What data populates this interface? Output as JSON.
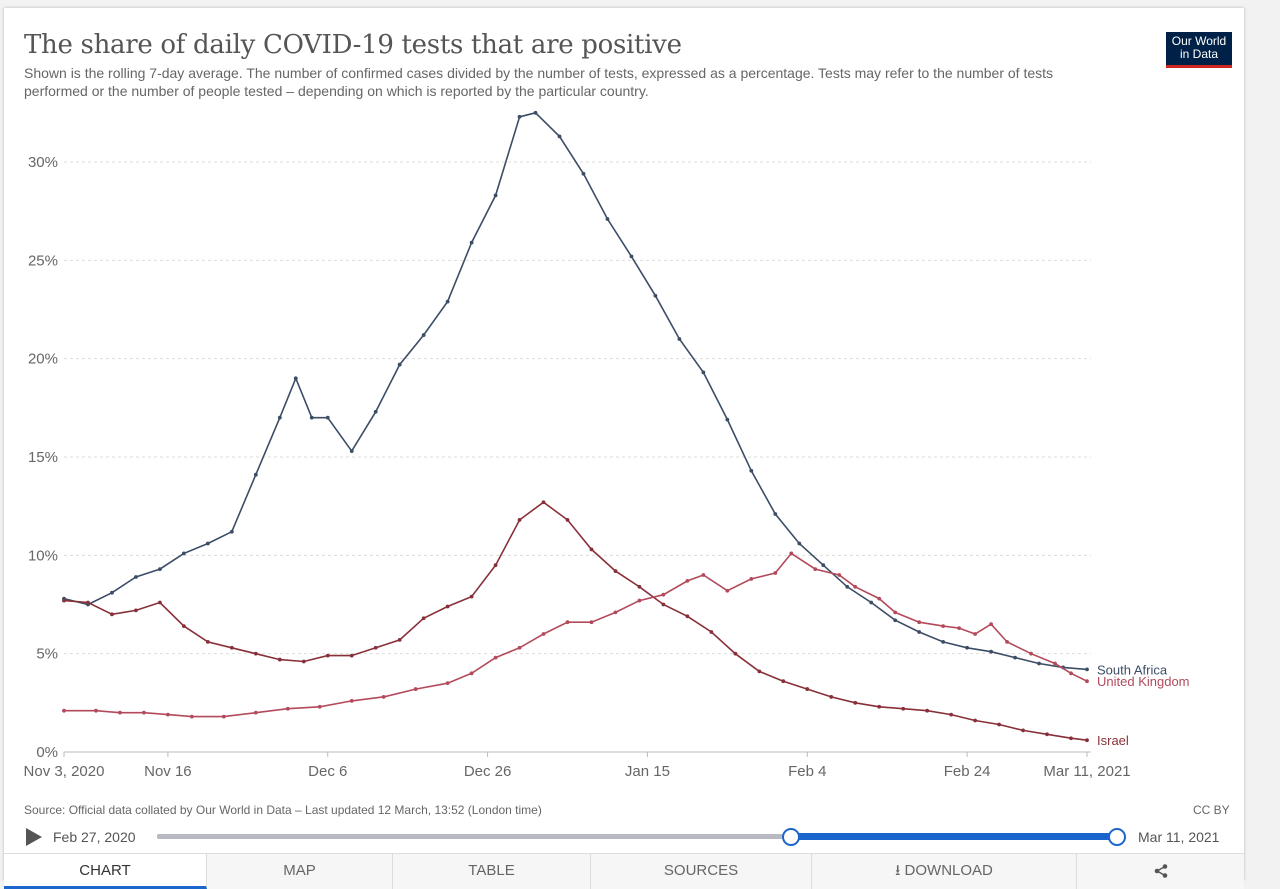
{
  "header": {
    "title": "The share of daily COVID-19 tests that are positive",
    "subtitle": "Shown is the rolling 7-day average. The number of confirmed cases divided by the number of tests, expressed as a percentage. Tests may refer to the number of tests performed or the number of people tested – depending on which is reported by the particular country.",
    "logo_line1": "Our World",
    "logo_line2": "in Data"
  },
  "chart_data": {
    "type": "line",
    "title": "The share of daily COVID-19 tests that are positive",
    "ylim": [
      0,
      32.5
    ],
    "y_ticks": [
      0,
      5,
      10,
      15,
      20,
      25,
      30
    ],
    "y_tick_labels": [
      "0%",
      "5%",
      "10%",
      "15%",
      "20%",
      "25%",
      "30%"
    ],
    "x_ticks": [
      0,
      13,
      33,
      53,
      73,
      93,
      113,
      128
    ],
    "x_tick_labels": [
      "Nov 3, 2020",
      "Nov 16",
      "Dec 6",
      "Dec 26",
      "Jan 15",
      "Feb 4",
      "Feb 24",
      "Mar 11, 2021"
    ],
    "x_unit": "days since Nov 3, 2020",
    "grid": true,
    "series": [
      {
        "name": "South Africa",
        "color": "#3c4e66",
        "points": [
          [
            0,
            7.8
          ],
          [
            3,
            7.5
          ],
          [
            6,
            8.1
          ],
          [
            9,
            8.9
          ],
          [
            12,
            9.3
          ],
          [
            15,
            10.1
          ],
          [
            18,
            10.6
          ],
          [
            21,
            11.2
          ],
          [
            24,
            14.1
          ],
          [
            27,
            17.0
          ],
          [
            29,
            19.0
          ],
          [
            31,
            17.0
          ],
          [
            33,
            17.0
          ],
          [
            36,
            15.3
          ],
          [
            39,
            17.3
          ],
          [
            42,
            19.7
          ],
          [
            45,
            21.2
          ],
          [
            48,
            22.9
          ],
          [
            51,
            25.9
          ],
          [
            54,
            28.3
          ],
          [
            57,
            32.3
          ],
          [
            59,
            32.5
          ],
          [
            62,
            31.3
          ],
          [
            65,
            29.4
          ],
          [
            68,
            27.1
          ],
          [
            71,
            25.2
          ],
          [
            74,
            23.2
          ],
          [
            77,
            21.0
          ],
          [
            80,
            19.3
          ],
          [
            83,
            16.9
          ],
          [
            86,
            14.3
          ],
          [
            89,
            12.1
          ],
          [
            92,
            10.6
          ],
          [
            95,
            9.5
          ],
          [
            98,
            8.4
          ],
          [
            101,
            7.6
          ],
          [
            104,
            6.7
          ],
          [
            107,
            6.1
          ],
          [
            110,
            5.6
          ],
          [
            113,
            5.3
          ],
          [
            116,
            5.1
          ],
          [
            119,
            4.8
          ],
          [
            122,
            4.5
          ],
          [
            125,
            4.3
          ],
          [
            128,
            4.2
          ]
        ]
      },
      {
        "name": "Israel",
        "color": "#883039",
        "points": [
          [
            0,
            7.7
          ],
          [
            3,
            7.6
          ],
          [
            6,
            7.0
          ],
          [
            9,
            7.2
          ],
          [
            12,
            7.6
          ],
          [
            15,
            6.4
          ],
          [
            18,
            5.6
          ],
          [
            21,
            5.3
          ],
          [
            24,
            5.0
          ],
          [
            27,
            4.7
          ],
          [
            30,
            4.6
          ],
          [
            33,
            4.9
          ],
          [
            36,
            4.9
          ],
          [
            39,
            5.3
          ],
          [
            42,
            5.7
          ],
          [
            45,
            6.8
          ],
          [
            48,
            7.4
          ],
          [
            51,
            7.9
          ],
          [
            54,
            9.5
          ],
          [
            57,
            11.8
          ],
          [
            60,
            12.7
          ],
          [
            63,
            11.8
          ],
          [
            66,
            10.3
          ],
          [
            69,
            9.2
          ],
          [
            72,
            8.4
          ],
          [
            75,
            7.5
          ],
          [
            78,
            6.9
          ],
          [
            81,
            6.1
          ],
          [
            84,
            5.0
          ],
          [
            87,
            4.1
          ],
          [
            90,
            3.6
          ],
          [
            93,
            3.2
          ],
          [
            96,
            2.8
          ],
          [
            99,
            2.5
          ],
          [
            102,
            2.3
          ],
          [
            105,
            2.2
          ],
          [
            108,
            2.1
          ],
          [
            111,
            1.9
          ],
          [
            114,
            1.6
          ],
          [
            117,
            1.4
          ],
          [
            120,
            1.1
          ],
          [
            123,
            0.9
          ],
          [
            126,
            0.7
          ],
          [
            128,
            0.6
          ]
        ]
      },
      {
        "name": "United Kingdom",
        "color": "#b34a5c",
        "points": [
          [
            0,
            2.1
          ],
          [
            4,
            2.1
          ],
          [
            7,
            2.0
          ],
          [
            10,
            2.0
          ],
          [
            13,
            1.9
          ],
          [
            16,
            1.8
          ],
          [
            20,
            1.8
          ],
          [
            24,
            2.0
          ],
          [
            28,
            2.2
          ],
          [
            32,
            2.3
          ],
          [
            36,
            2.6
          ],
          [
            40,
            2.8
          ],
          [
            44,
            3.2
          ],
          [
            48,
            3.5
          ],
          [
            51,
            4.0
          ],
          [
            54,
            4.8
          ],
          [
            57,
            5.3
          ],
          [
            60,
            6.0
          ],
          [
            63,
            6.6
          ],
          [
            66,
            6.6
          ],
          [
            69,
            7.1
          ],
          [
            72,
            7.7
          ],
          [
            75,
            8.0
          ],
          [
            78,
            8.7
          ],
          [
            80,
            9.0
          ],
          [
            83,
            8.2
          ],
          [
            86,
            8.8
          ],
          [
            89,
            9.1
          ],
          [
            91,
            10.1
          ],
          [
            94,
            9.3
          ],
          [
            97,
            9.0
          ],
          [
            99,
            8.4
          ],
          [
            102,
            7.8
          ],
          [
            104,
            7.1
          ],
          [
            107,
            6.6
          ],
          [
            110,
            6.4
          ],
          [
            112,
            6.3
          ],
          [
            114,
            6.0
          ],
          [
            116,
            6.5
          ],
          [
            118,
            5.6
          ],
          [
            121,
            5.0
          ],
          [
            124,
            4.5
          ],
          [
            126,
            4.0
          ],
          [
            128,
            3.6
          ]
        ]
      }
    ],
    "series_labels": [
      "South Africa",
      "Israel",
      "United Kingdom"
    ]
  },
  "footer": {
    "source": "Source: Official data collated by Our World in Data – Last updated 12 March, 13:52 (London time)",
    "license": "CC BY",
    "range_start": "Feb 27, 2020",
    "range_end": "Mar 11, 2021"
  },
  "tabs": [
    "CHART",
    "MAP",
    "TABLE",
    "SOURCES",
    "DOWNLOAD",
    ""
  ],
  "icons": {
    "download": "download-icon",
    "share": "share-icon",
    "play": "play-icon"
  }
}
